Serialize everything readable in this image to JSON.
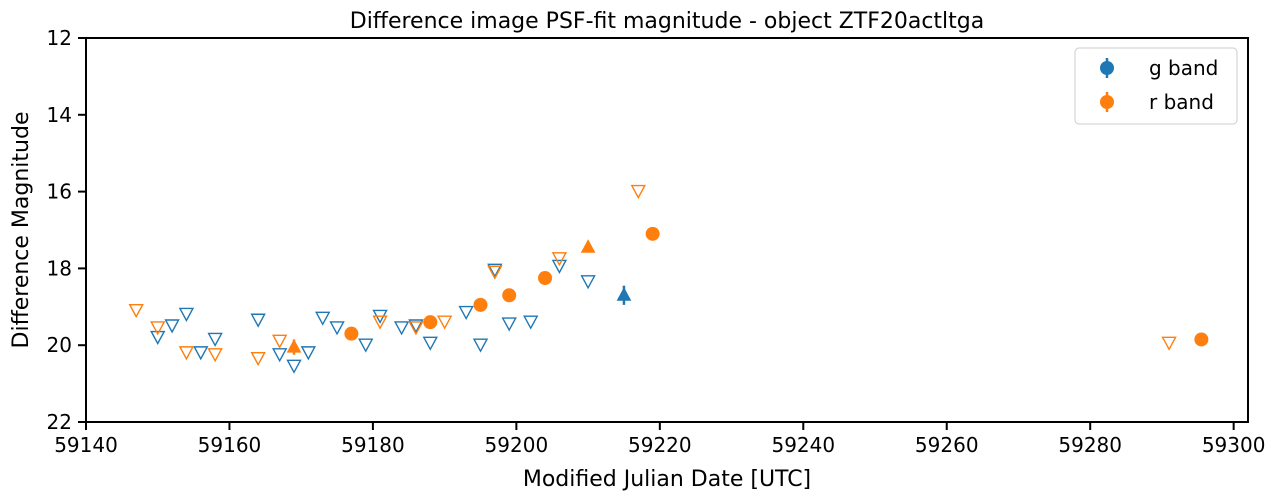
{
  "chart_data": {
    "type": "scatter",
    "title": "Difference image PSF-fit magnitude - object ZTF20actltga",
    "xlabel": "Modified Julian Date [UTC]",
    "ylabel": "Difference Magnitude",
    "xlim": [
      59140,
      59302
    ],
    "ylim": [
      22,
      12
    ],
    "y_inverted": true,
    "xticks": [
      59140,
      59160,
      59180,
      59200,
      59220,
      59240,
      59260,
      59280,
      59300
    ],
    "yticks": [
      12,
      14,
      16,
      18,
      20,
      22
    ],
    "grid": false,
    "legend_position": "top-right",
    "series": [
      {
        "name": "g band",
        "color": "#1f77b4",
        "detections": [],
        "upper_limits": [
          {
            "x": 59150.0,
            "y": 19.8
          },
          {
            "x": 59152.0,
            "y": 19.5
          },
          {
            "x": 59154.0,
            "y": 19.2
          },
          {
            "x": 59156.0,
            "y": 20.2
          },
          {
            "x": 59158.0,
            "y": 19.85
          },
          {
            "x": 59164.0,
            "y": 19.35
          },
          {
            "x": 59167.0,
            "y": 20.25
          },
          {
            "x": 59169.0,
            "y": 20.55
          },
          {
            "x": 59171.0,
            "y": 20.2
          },
          {
            "x": 59173.0,
            "y": 19.3
          },
          {
            "x": 59175.0,
            "y": 19.55
          },
          {
            "x": 59179.0,
            "y": 20.0
          },
          {
            "x": 59181.0,
            "y": 19.25
          },
          {
            "x": 59184.0,
            "y": 19.55
          },
          {
            "x": 59186.0,
            "y": 19.5
          },
          {
            "x": 59188.0,
            "y": 19.95
          },
          {
            "x": 59193.0,
            "y": 19.15
          },
          {
            "x": 59195.0,
            "y": 20.0
          },
          {
            "x": 59197.0,
            "y": 18.05
          },
          {
            "x": 59199.0,
            "y": 19.45
          },
          {
            "x": 59202.0,
            "y": 19.4
          },
          {
            "x": 59206.0,
            "y": 17.95
          },
          {
            "x": 59210.0,
            "y": 18.35
          }
        ],
        "lower_limits": [
          {
            "x": 59215.0,
            "y": 18.7,
            "err": 0.25
          }
        ]
      },
      {
        "name": "r band",
        "color": "#ff7f0e",
        "detections": [
          {
            "x": 59177.0,
            "y": 19.7,
            "err": 0.07
          },
          {
            "x": 59188.0,
            "y": 19.4,
            "err": 0.06
          },
          {
            "x": 59195.0,
            "y": 18.95,
            "err": 0.05
          },
          {
            "x": 59199.0,
            "y": 18.7,
            "err": 0.05
          },
          {
            "x": 59204.0,
            "y": 18.25,
            "err": 0.05
          },
          {
            "x": 59219.0,
            "y": 17.1,
            "err": 0.05
          },
          {
            "x": 59295.5,
            "y": 19.85,
            "err": 0.13
          }
        ],
        "upper_limits": [
          {
            "x": 59147.0,
            "y": 19.1
          },
          {
            "x": 59150.0,
            "y": 19.55
          },
          {
            "x": 59154.0,
            "y": 20.2
          },
          {
            "x": 59158.0,
            "y": 20.25
          },
          {
            "x": 59164.0,
            "y": 20.35
          },
          {
            "x": 59167.0,
            "y": 19.9
          },
          {
            "x": 59181.0,
            "y": 19.4
          },
          {
            "x": 59186.0,
            "y": 19.55
          },
          {
            "x": 59190.0,
            "y": 19.4
          },
          {
            "x": 59197.0,
            "y": 18.1
          },
          {
            "x": 59206.0,
            "y": 17.75
          },
          {
            "x": 59217.0,
            "y": 16.0
          },
          {
            "x": 59291.0,
            "y": 19.95
          }
        ],
        "lower_limits": [
          {
            "x": 59169.0,
            "y": 20.05,
            "err": 0.2
          },
          {
            "x": 59210.0,
            "y": 17.45,
            "err": 0.05
          }
        ]
      }
    ]
  }
}
